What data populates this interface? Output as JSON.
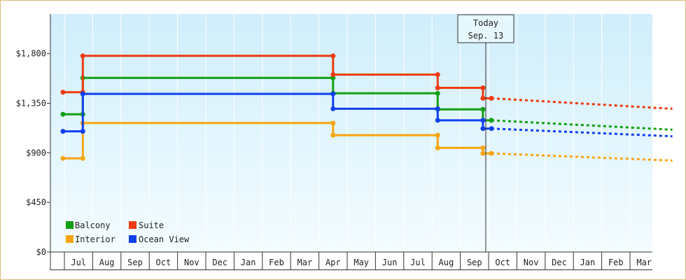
{
  "chart_data": {
    "type": "line",
    "x_axis": {
      "months": [
        "Jul",
        "Aug",
        "Sep",
        "Oct",
        "Nov",
        "Dec",
        "Jan",
        "Feb",
        "Mar",
        "Apr",
        "May",
        "Jun",
        "Jul",
        "Aug",
        "Sep",
        "Oct",
        "Nov",
        "Dec",
        "Jan",
        "Feb",
        "Mar"
      ]
    },
    "y_axis": {
      "range": [
        0,
        2160
      ],
      "ticks": [
        {
          "value": 0,
          "label": "$0"
        },
        {
          "value": 450,
          "label": "$450"
        },
        {
          "value": 900,
          "label": "$900"
        },
        {
          "value": 1350,
          "label": "$1,350"
        },
        {
          "value": 1800,
          "label": "$1,800"
        }
      ]
    },
    "today_marker": {
      "line1": "Today",
      "line2": "Sep. 13",
      "x": 14.4
    },
    "series": [
      {
        "name": "Balcony",
        "color": "#11a011",
        "points": [
          [
            -0.55,
            1250
          ],
          [
            0.15,
            1250
          ],
          [
            0.15,
            1580
          ],
          [
            9,
            1580
          ],
          [
            9,
            1440
          ],
          [
            12.7,
            1440
          ],
          [
            12.7,
            1295
          ],
          [
            14.3,
            1295
          ],
          [
            14.3,
            1195
          ],
          [
            14.6,
            1195
          ]
        ],
        "forecast": [
          [
            14.6,
            1195
          ],
          [
            21,
            1110
          ]
        ]
      },
      {
        "name": "Suite",
        "color": "#ee3a10",
        "points": [
          [
            -0.55,
            1450
          ],
          [
            0.15,
            1450
          ],
          [
            0.15,
            1780
          ],
          [
            9,
            1780
          ],
          [
            9,
            1610
          ],
          [
            12.7,
            1610
          ],
          [
            12.7,
            1490
          ],
          [
            14.3,
            1490
          ],
          [
            14.3,
            1395
          ],
          [
            14.6,
            1395
          ]
        ],
        "forecast": [
          [
            14.6,
            1395
          ],
          [
            21,
            1300
          ]
        ]
      },
      {
        "name": "Interior",
        "color": "#f6a511",
        "points": [
          [
            -0.55,
            850
          ],
          [
            0.15,
            850
          ],
          [
            0.15,
            1170
          ],
          [
            9,
            1170
          ],
          [
            9,
            1060
          ],
          [
            12.7,
            1060
          ],
          [
            12.7,
            945
          ],
          [
            14.3,
            945
          ],
          [
            14.3,
            895
          ],
          [
            14.6,
            895
          ]
        ],
        "forecast": [
          [
            14.6,
            895
          ],
          [
            21,
            830
          ]
        ]
      },
      {
        "name": "Ocean View",
        "color": "#1040ee",
        "points": [
          [
            -0.55,
            1095
          ],
          [
            0.15,
            1095
          ],
          [
            0.15,
            1435
          ],
          [
            9,
            1435
          ],
          [
            9,
            1300
          ],
          [
            12.7,
            1300
          ],
          [
            12.7,
            1195
          ],
          [
            14.3,
            1195
          ],
          [
            14.3,
            1120
          ],
          [
            14.6,
            1120
          ]
        ],
        "forecast": [
          [
            14.6,
            1120
          ],
          [
            21,
            1050
          ]
        ]
      }
    ],
    "legend_order": [
      {
        "name": "Balcony",
        "color": "#11a011"
      },
      {
        "name": "Suite",
        "color": "#ee3a10"
      },
      {
        "name": "Interior",
        "color": "#f6a511"
      },
      {
        "name": "Ocean View",
        "color": "#1040ee"
      }
    ]
  }
}
